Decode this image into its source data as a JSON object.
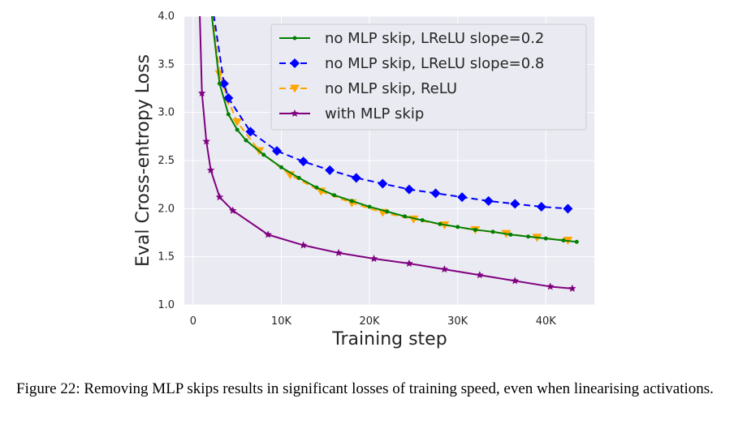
{
  "chart_data": {
    "type": "line",
    "xlabel": "Training step",
    "ylabel": "Eval Cross-entropy Loss",
    "xlim": [
      -1000,
      45500
    ],
    "ylim": [
      1.0,
      4.0
    ],
    "x_ticks": [
      0,
      10000,
      20000,
      30000,
      40000
    ],
    "x_tick_labels": [
      "0",
      "10K",
      "20K",
      "30K",
      "40K"
    ],
    "y_ticks": [
      1.0,
      1.5,
      2.0,
      2.5,
      3.0,
      3.5,
      4.0
    ],
    "y_tick_labels": [
      "1.0",
      "1.5",
      "2.0",
      "2.5",
      "3.0",
      "3.5",
      "4.0"
    ],
    "grid": true,
    "legend_position": "top-right",
    "background": "#eaeaf2",
    "series": [
      {
        "name": "no MLP skip, LReLU slope=0.2",
        "color": "#008000",
        "line_style": "solid",
        "marker": "dot",
        "x": [
          1500,
          2000,
          3000,
          4000,
          5000,
          6000,
          8000,
          10000,
          12000,
          14000,
          16000,
          18000,
          20000,
          22000,
          24000,
          26000,
          28000,
          30000,
          32000,
          34000,
          36000,
          38000,
          40000,
          42000,
          43500
        ],
        "y": [
          5.0,
          4.1,
          3.3,
          2.98,
          2.82,
          2.71,
          2.56,
          2.43,
          2.32,
          2.22,
          2.14,
          2.08,
          2.02,
          1.97,
          1.92,
          1.88,
          1.84,
          1.81,
          1.78,
          1.76,
          1.73,
          1.71,
          1.69,
          1.67,
          1.655
        ]
      },
      {
        "name": "no MLP skip, LReLU slope=0.8",
        "color": "#0000ff",
        "line_style": "dashed",
        "marker": "diamond",
        "x": [
          1500,
          2200,
          3500,
          4000,
          6500,
          9500,
          12500,
          15500,
          18500,
          21500,
          24500,
          27500,
          30500,
          33500,
          36500,
          39500,
          42500
        ],
        "y": [
          5.0,
          4.1,
          3.3,
          3.15,
          2.8,
          2.6,
          2.49,
          2.4,
          2.32,
          2.26,
          2.2,
          2.16,
          2.12,
          2.08,
          2.05,
          2.02,
          2.0
        ]
      },
      {
        "name": "no MLP skip, ReLU",
        "color": "#ffa500",
        "line_style": "dashed",
        "marker": "triangle-down",
        "x": [
          1500,
          2100,
          3000,
          4000,
          5000,
          7500,
          11000,
          14500,
          18000,
          21500,
          25000,
          28500,
          32000,
          35500,
          39000,
          42500
        ],
        "y": [
          5.0,
          4.1,
          3.4,
          3.12,
          2.9,
          2.6,
          2.35,
          2.18,
          2.06,
          1.96,
          1.89,
          1.83,
          1.78,
          1.74,
          1.7,
          1.67
        ]
      },
      {
        "name": "with MLP skip",
        "color": "#800080",
        "line_style": "solid",
        "marker": "star",
        "x": [
          500,
          700,
          1000,
          1500,
          2000,
          3000,
          4500,
          8500,
          12500,
          16500,
          20500,
          24500,
          28500,
          32500,
          36500,
          40500,
          43000
        ],
        "y": [
          5.0,
          4.2,
          3.2,
          2.7,
          2.4,
          2.12,
          1.98,
          1.73,
          1.62,
          1.54,
          1.48,
          1.43,
          1.37,
          1.31,
          1.25,
          1.19,
          1.17
        ]
      }
    ]
  },
  "caption": "Figure 22: Removing MLP skips results in significant losses of training speed, even when linearising activations."
}
